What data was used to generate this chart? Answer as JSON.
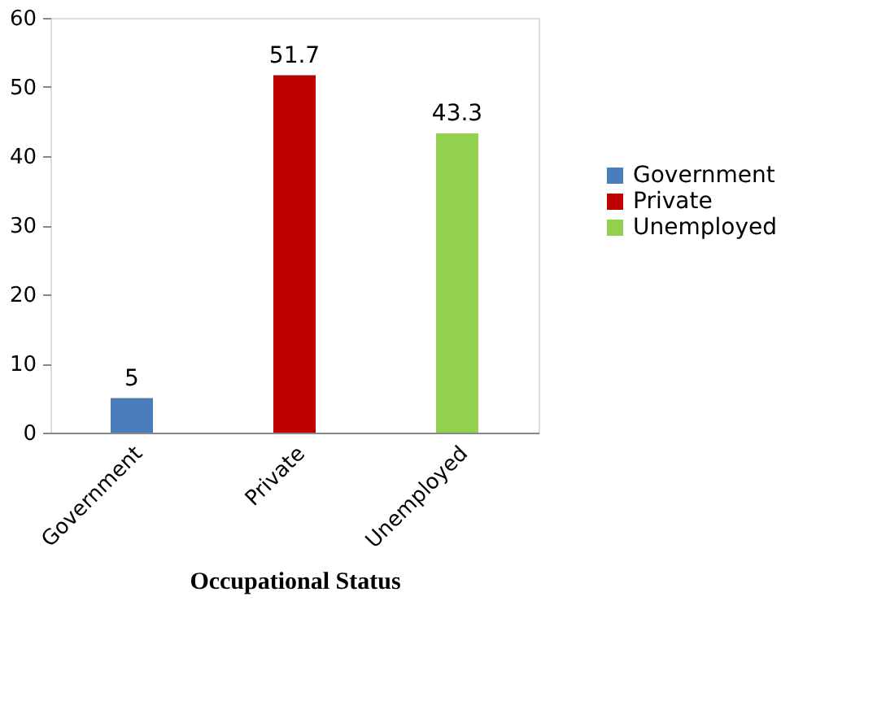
{
  "chart_data": {
    "type": "bar",
    "xlabel": "Occupational Status",
    "categories": [
      "Government",
      "Private",
      "Unemployed"
    ],
    "series": [
      {
        "name": "Government",
        "color": "#4a7ebb",
        "values": [
          5,
          null,
          null
        ]
      },
      {
        "name": "Private",
        "color": "#c00000",
        "values": [
          null,
          51.7,
          null
        ]
      },
      {
        "name": "Unemployed",
        "color": "#92d050",
        "values": [
          null,
          null,
          43.3
        ]
      }
    ],
    "ylim": [
      0,
      60
    ],
    "yticks": [
      0,
      10,
      20,
      30,
      40,
      50,
      60
    ],
    "grid": false,
    "legend": "right",
    "data_labels": true
  }
}
